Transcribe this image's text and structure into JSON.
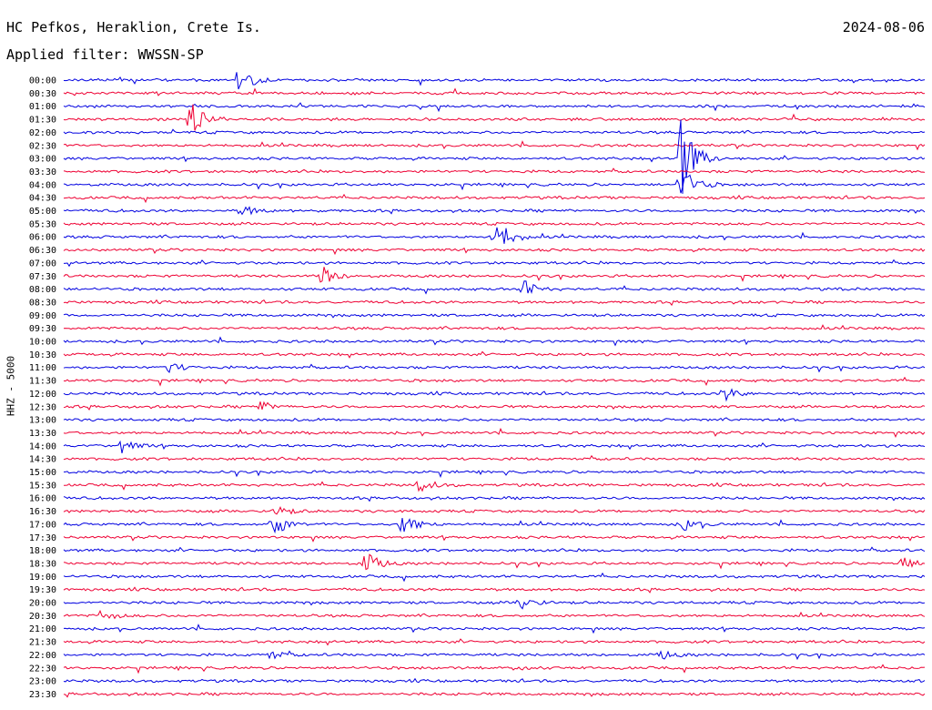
{
  "header": {
    "station": "HC Pefkos, Heraklion, Crete Is.",
    "date": "2024-08-06",
    "filter": "Applied filter: WWSSN-SP"
  },
  "chart_data": {
    "type": "line",
    "title": "HC Pefkos, Heraklion, Crete Is.",
    "subtitle": "Applied filter: WWSSN-SP",
    "ylabel": "HHZ - 5000",
    "xlabel": "",
    "date": "2024-08-06",
    "grid": false,
    "colors": [
      "#0000e0",
      "#ee0033"
    ],
    "rows": [
      "00:00",
      "00:30",
      "01:00",
      "01:30",
      "02:00",
      "02:30",
      "03:00",
      "03:30",
      "04:00",
      "04:30",
      "05:00",
      "05:30",
      "06:00",
      "06:30",
      "07:00",
      "07:30",
      "08:00",
      "08:30",
      "09:00",
      "09:30",
      "10:00",
      "10:30",
      "11:00",
      "11:30",
      "12:00",
      "12:30",
      "13:00",
      "13:30",
      "14:00",
      "14:30",
      "15:00",
      "15:30",
      "16:00",
      "16:30",
      "17:00",
      "17:30",
      "18:00",
      "18:30",
      "19:00",
      "19:30",
      "20:00",
      "20:30",
      "21:00",
      "21:30",
      "22:00",
      "22:30",
      "23:00",
      "23:30"
    ],
    "row_minutes": 30,
    "events": [
      {
        "row": "00:00",
        "minute": 6.1,
        "amplitude": 16
      },
      {
        "row": "01:30",
        "minute": 4.4,
        "amplitude": 22
      },
      {
        "row": "03:00",
        "minute": 21.5,
        "amplitude": 48
      },
      {
        "row": "04:00",
        "minute": 21.5,
        "amplitude": 24
      },
      {
        "row": "05:00",
        "minute": 6.2,
        "amplitude": 7
      },
      {
        "row": "06:00",
        "minute": 15.0,
        "amplitude": 26
      },
      {
        "row": "07:30",
        "minute": 9.0,
        "amplitude": 12
      },
      {
        "row": "08:00",
        "minute": 16.0,
        "amplitude": 10
      },
      {
        "row": "11:00",
        "minute": 3.7,
        "amplitude": 6
      },
      {
        "row": "12:00",
        "minute": 23.0,
        "amplitude": 8
      },
      {
        "row": "12:30",
        "minute": 6.8,
        "amplitude": 6
      },
      {
        "row": "14:00",
        "minute": 2.0,
        "amplitude": 8
      },
      {
        "row": "15:30",
        "minute": 12.4,
        "amplitude": 8
      },
      {
        "row": "16:30",
        "minute": 7.4,
        "amplitude": 6
      },
      {
        "row": "17:00",
        "minute": 7.3,
        "amplitude": 14
      },
      {
        "row": "17:00",
        "minute": 11.8,
        "amplitude": 16
      },
      {
        "row": "17:00",
        "minute": 21.6,
        "amplitude": 8
      },
      {
        "row": "18:30",
        "minute": 10.5,
        "amplitude": 14
      },
      {
        "row": "18:30",
        "minute": 29.2,
        "amplitude": 8
      },
      {
        "row": "20:00",
        "minute": 15.9,
        "amplitude": 8
      },
      {
        "row": "20:30",
        "minute": 1.3,
        "amplitude": 6
      },
      {
        "row": "22:00",
        "minute": 7.2,
        "amplitude": 5
      },
      {
        "row": "22:00",
        "minute": 20.8,
        "amplitude": 5
      },
      {
        "row": "22:30",
        "minute": 15.7,
        "amplitude": 4
      }
    ]
  }
}
